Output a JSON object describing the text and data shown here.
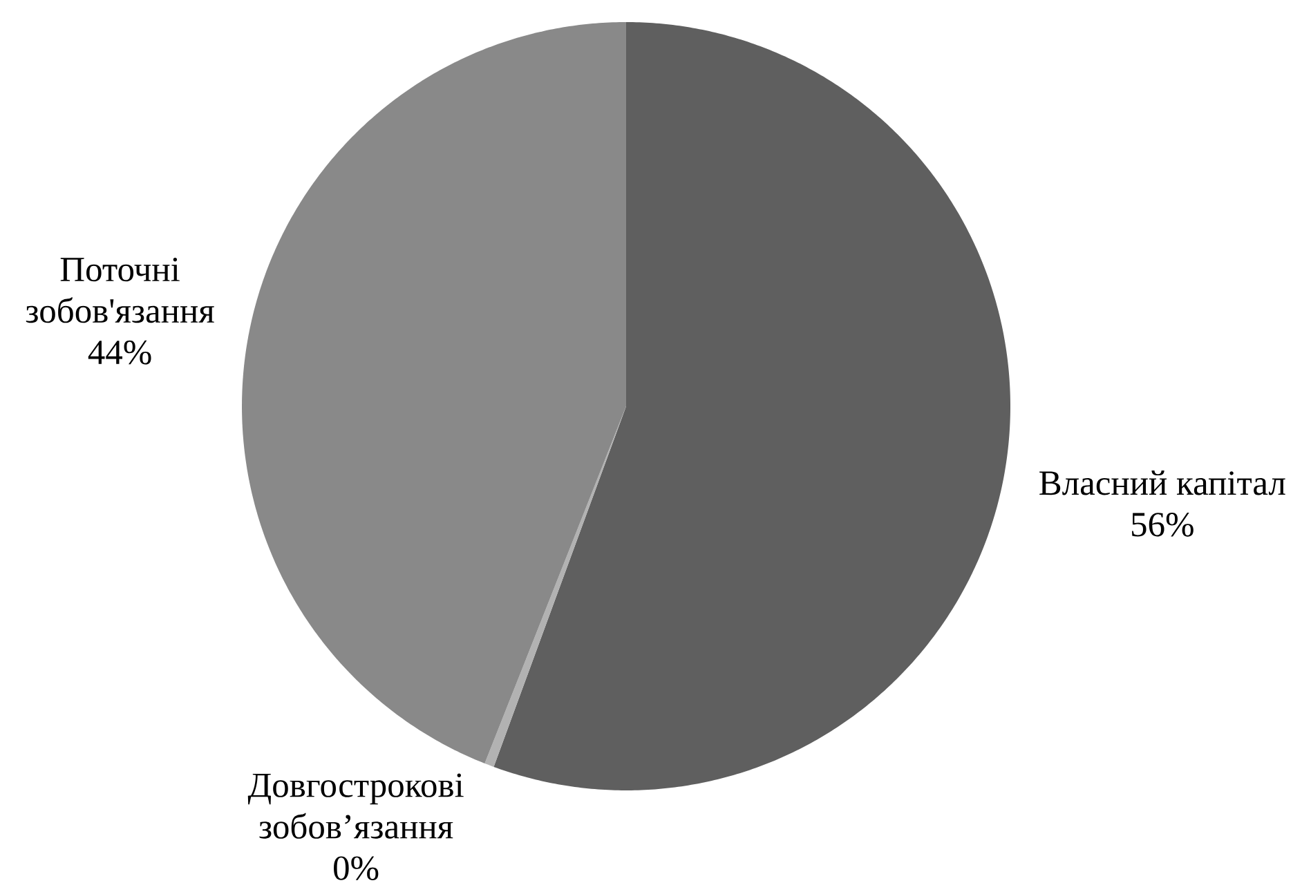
{
  "chart_data": {
    "type": "pie",
    "categories": [
      "Власний капітал",
      "Довгострокові зобов’язання",
      "Поточні зобов'язання"
    ],
    "values": [
      55.6,
      0.4,
      44.0
    ],
    "value_labels": [
      "56%",
      "0%",
      "44%"
    ],
    "colors": [
      "#5f5f5f",
      "#b2b2b2",
      "#898989"
    ]
  }
}
